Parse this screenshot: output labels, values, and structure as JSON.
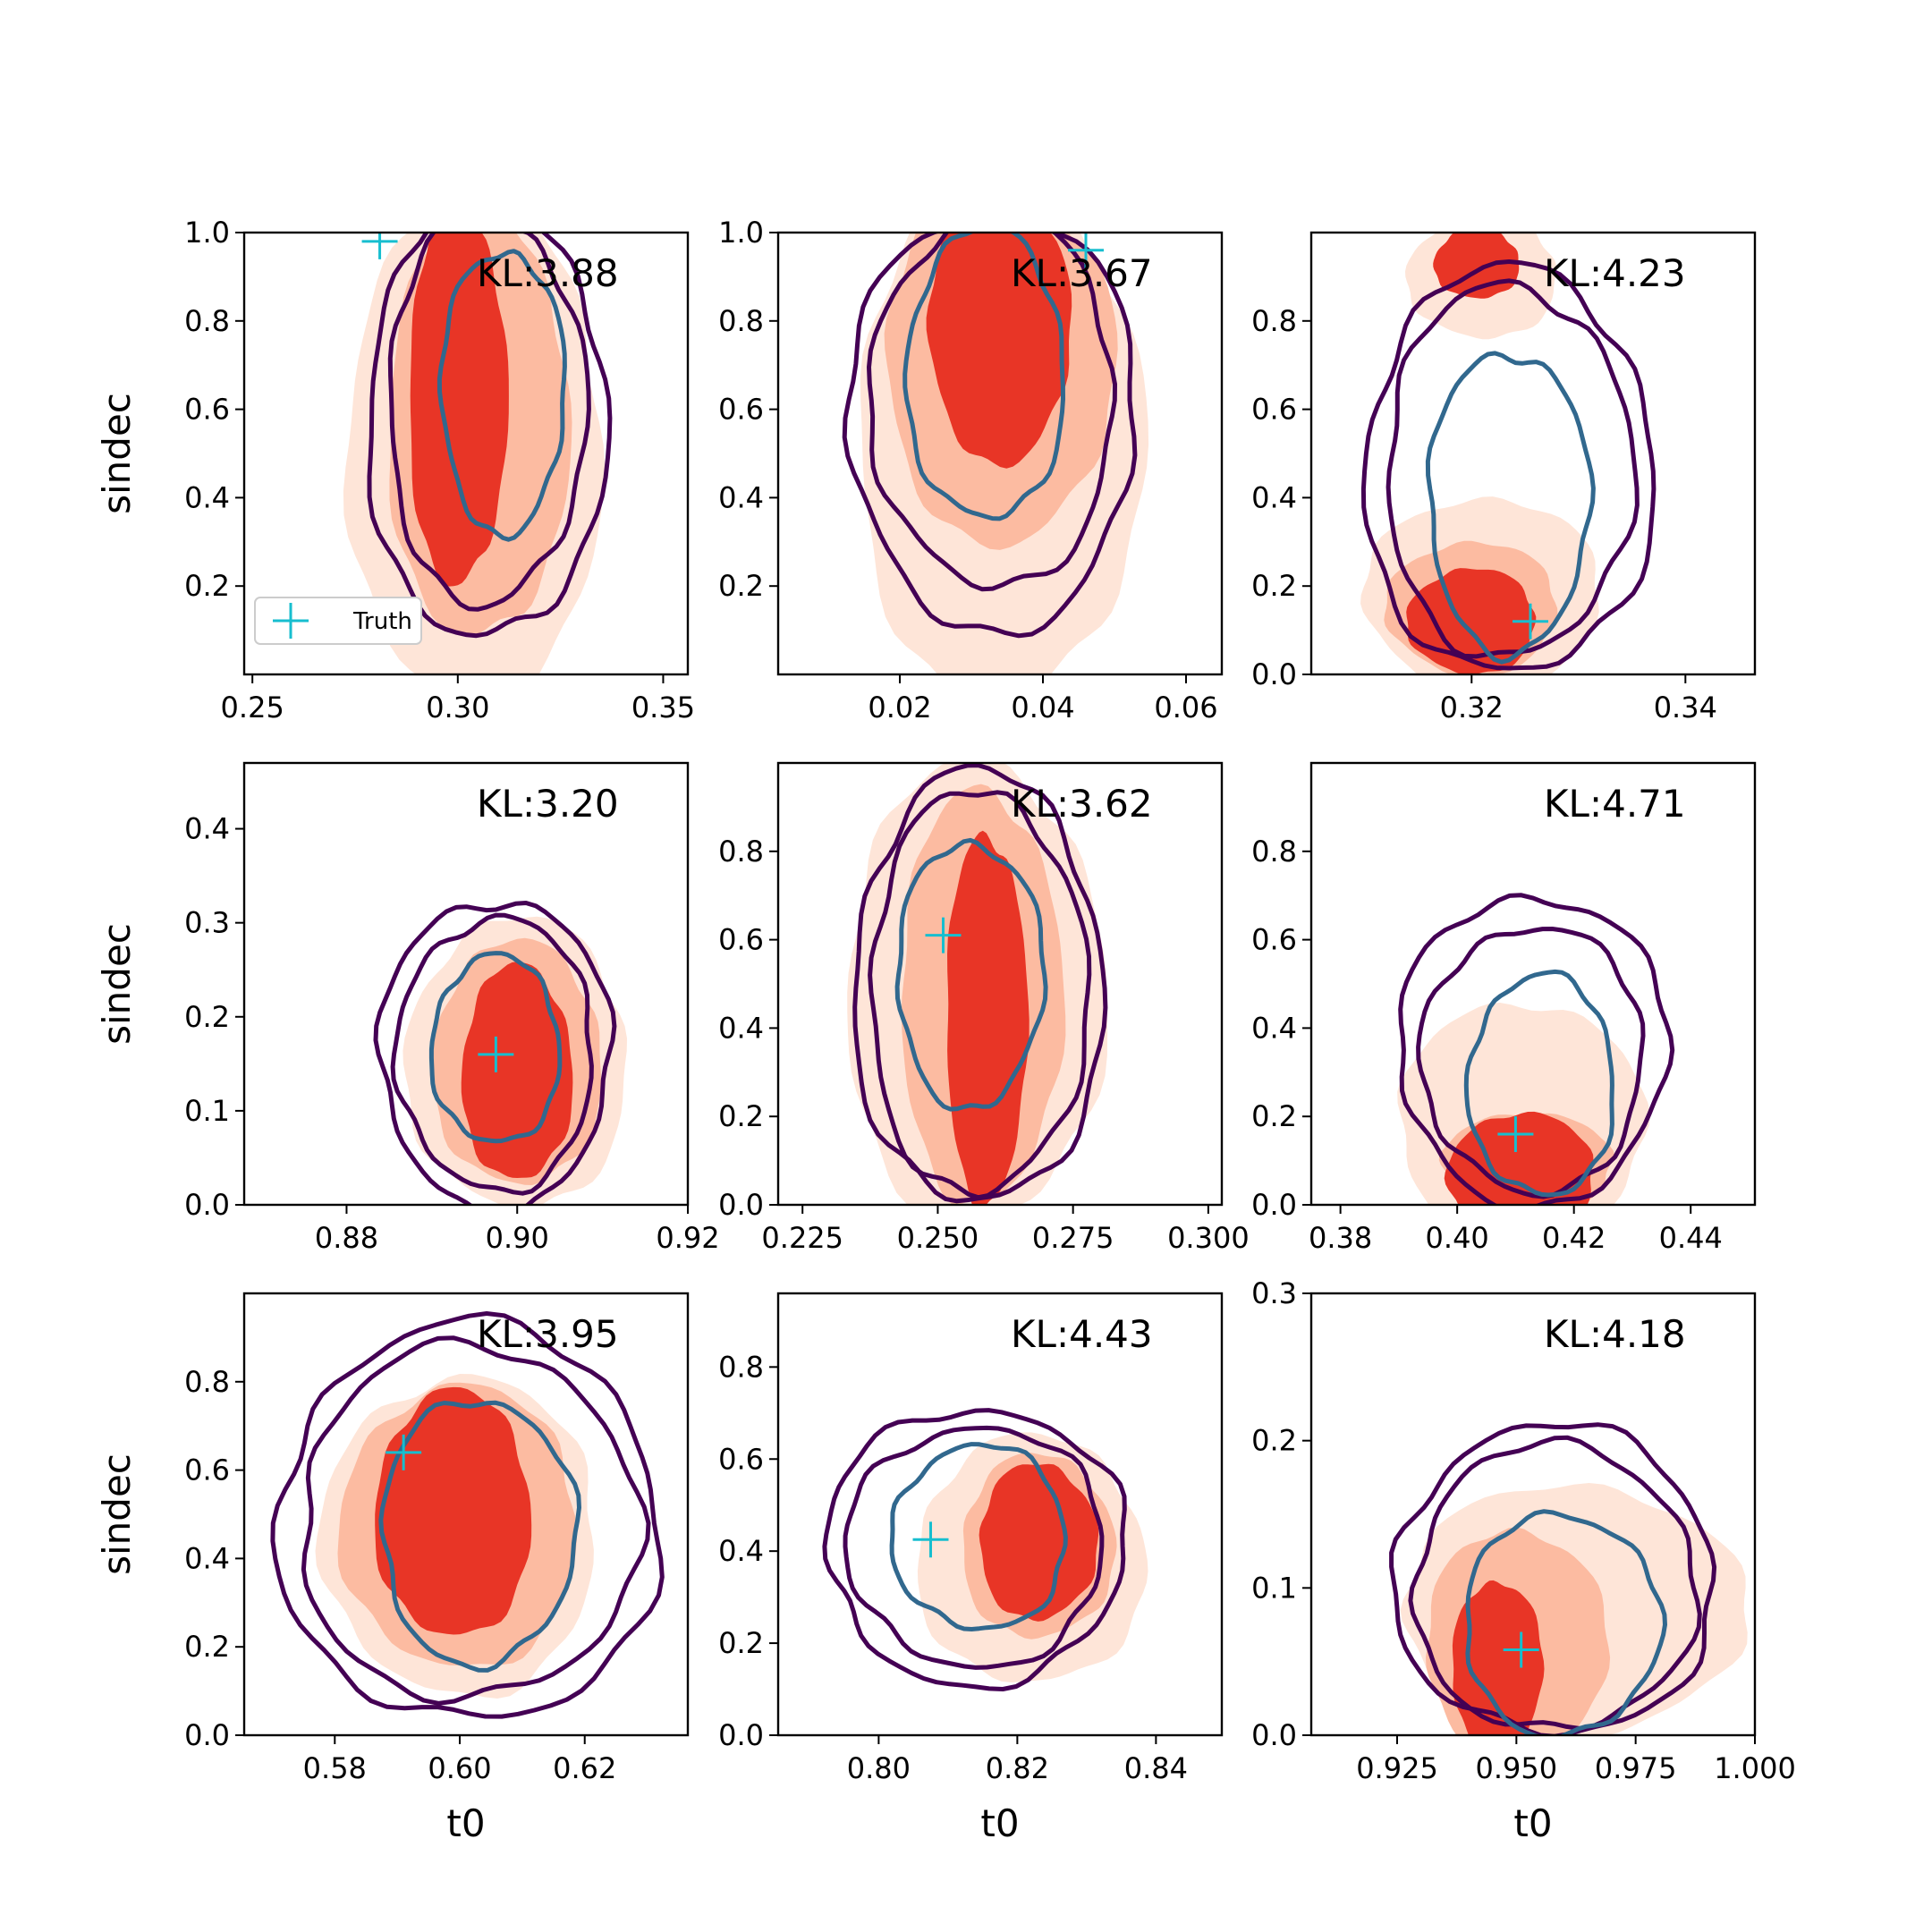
{
  "chart_data": [
    {
      "type": "contour",
      "kl": "KL:3.88",
      "xlabel": "",
      "ylabel": "sindec",
      "xlim": [
        0.248,
        0.356
      ],
      "ylim": [
        0.0,
        1.0
      ],
      "xticks": [
        "0.25",
        "0.30",
        "0.35"
      ],
      "xtick_values": [
        0.25,
        0.3,
        0.35
      ],
      "yticks": [
        "0.2",
        "0.4",
        "0.6",
        "0.8",
        "1.0"
      ],
      "ytick_values": [
        0.2,
        0.4,
        0.6,
        0.8,
        1.0
      ],
      "truth": [
        0.281,
        0.98
      ],
      "legend": {
        "label": "Truth",
        "position": "lower-left"
      },
      "filled": [
        {
          "level": 0,
          "cx": 0.304,
          "cy": 0.52,
          "rx": 0.031,
          "ry": 0.58
        },
        {
          "level": 1,
          "cx": 0.305,
          "cy": 0.57,
          "rx": 0.022,
          "ry": 0.49
        },
        {
          "level": 2,
          "cx": 0.3,
          "cy": 0.63,
          "rx": 0.012,
          "ry": 0.43
        }
      ],
      "lines": [
        {
          "color": "#440154",
          "cx": 0.307,
          "cy": 0.58,
          "rx": 0.029,
          "ry": 0.5
        },
        {
          "color": "#440154",
          "cx": 0.307,
          "cy": 0.6,
          "rx": 0.024,
          "ry": 0.44
        },
        {
          "color": "#31688e",
          "cx": 0.311,
          "cy": 0.64,
          "rx": 0.015,
          "ry": 0.32
        }
      ]
    },
    {
      "type": "contour",
      "kl": "KL:3.67",
      "xlabel": "",
      "ylabel": "",
      "xlim": [
        0.003,
        0.065
      ],
      "ylim": [
        0.0,
        1.0
      ],
      "xticks": [
        "0.02",
        "0.04",
        "0.06"
      ],
      "xtick_values": [
        0.02,
        0.04,
        0.06
      ],
      "yticks": [
        "0.2",
        "0.4",
        "0.6",
        "0.8",
        "1.0"
      ],
      "ytick_values": [
        0.2,
        0.4,
        0.6,
        0.8,
        1.0
      ],
      "truth": [
        0.046,
        0.96
      ],
      "filled": [
        {
          "level": 0,
          "cx": 0.034,
          "cy": 0.52,
          "rx": 0.02,
          "ry": 0.58
        },
        {
          "level": 1,
          "cx": 0.034,
          "cy": 0.7,
          "rx": 0.016,
          "ry": 0.4
        },
        {
          "level": 2,
          "cx": 0.034,
          "cy": 0.78,
          "rx": 0.01,
          "ry": 0.3
        }
      ],
      "lines": [
        {
          "color": "#440154",
          "cx": 0.033,
          "cy": 0.58,
          "rx": 0.02,
          "ry": 0.48
        },
        {
          "color": "#440154",
          "cx": 0.033,
          "cy": 0.62,
          "rx": 0.017,
          "ry": 0.42
        },
        {
          "color": "#31688e",
          "cx": 0.032,
          "cy": 0.68,
          "rx": 0.011,
          "ry": 0.33
        }
      ]
    },
    {
      "type": "contour",
      "kl": "KL:4.23",
      "xlabel": "",
      "ylabel": "",
      "xlim": [
        0.305,
        0.3465
      ],
      "ylim": [
        0.0,
        1.0
      ],
      "xticks": [
        "0.32",
        "0.34"
      ],
      "xtick_values": [
        0.32,
        0.34
      ],
      "yticks": [
        "0.0",
        "0.2",
        "0.4",
        "0.6",
        "0.8"
      ],
      "ytick_values": [
        0.0,
        0.2,
        0.4,
        0.6,
        0.8
      ],
      "truth": [
        0.3255,
        0.12
      ],
      "filled": [
        {
          "level": 0,
          "cx": 0.321,
          "cy": 0.18,
          "rx": 0.011,
          "ry": 0.22
        },
        {
          "level": 1,
          "cx": 0.32,
          "cy": 0.15,
          "rx": 0.008,
          "ry": 0.15
        },
        {
          "level": 2,
          "cx": 0.32,
          "cy": 0.12,
          "rx": 0.006,
          "ry": 0.12
        },
        {
          "level": 0,
          "cx": 0.321,
          "cy": 0.9,
          "rx": 0.007,
          "ry": 0.14
        },
        {
          "level": 2,
          "cx": 0.3205,
          "cy": 0.93,
          "rx": 0.004,
          "ry": 0.08
        }
      ],
      "lines": [
        {
          "color": "#440154",
          "cx": 0.3235,
          "cy": 0.46,
          "rx": 0.0135,
          "ry": 0.46
        },
        {
          "color": "#440154",
          "cx": 0.3235,
          "cy": 0.46,
          "rx": 0.0115,
          "ry": 0.42
        },
        {
          "color": "#31688e",
          "cx": 0.3235,
          "cy": 0.39,
          "rx": 0.0075,
          "ry": 0.34
        }
      ]
    },
    {
      "type": "contour",
      "kl": "KL:3.20",
      "xlabel": "",
      "ylabel": "sindec",
      "xlim": [
        0.868,
        0.92
      ],
      "ylim": [
        0.0,
        0.47
      ],
      "xticks": [
        "0.88",
        "0.90",
        "0.92"
      ],
      "xtick_values": [
        0.88,
        0.9,
        0.92
      ],
      "yticks": [
        "0.0",
        "0.1",
        "0.2",
        "0.3",
        "0.4"
      ],
      "ytick_values": [
        0.0,
        0.1,
        0.2,
        0.3,
        0.4
      ],
      "truth": [
        0.8975,
        0.16
      ],
      "filled": [
        {
          "level": 0,
          "cx": 0.9,
          "cy": 0.15,
          "rx": 0.013,
          "ry": 0.155
        },
        {
          "level": 1,
          "cx": 0.9,
          "cy": 0.15,
          "rx": 0.01,
          "ry": 0.13
        },
        {
          "level": 2,
          "cx": 0.9,
          "cy": 0.14,
          "rx": 0.0065,
          "ry": 0.115
        }
      ],
      "lines": [
        {
          "color": "#440154",
          "cx": 0.8975,
          "cy": 0.16,
          "rx": 0.0135,
          "ry": 0.165
        },
        {
          "color": "#440154",
          "cx": 0.8975,
          "cy": 0.16,
          "rx": 0.0115,
          "ry": 0.145
        },
        {
          "color": "#31688e",
          "cx": 0.8975,
          "cy": 0.165,
          "rx": 0.0075,
          "ry": 0.1
        }
      ]
    },
    {
      "type": "contour",
      "kl": "KL:3.62",
      "xlabel": "",
      "ylabel": "",
      "xlim": [
        0.2205,
        0.3025
      ],
      "ylim": [
        0.0,
        1.0
      ],
      "xticks": [
        "0.225",
        "0.250",
        "0.275",
        "0.300"
      ],
      "xtick_values": [
        0.225,
        0.25,
        0.275,
        0.3
      ],
      "yticks": [
        "0.0",
        "0.2",
        "0.4",
        "0.6",
        "0.8"
      ],
      "ytick_values": [
        0.0,
        0.2,
        0.4,
        0.6,
        0.8
      ],
      "truth": [
        0.251,
        0.61
      ],
      "filled": [
        {
          "level": 0,
          "cx": 0.257,
          "cy": 0.48,
          "rx": 0.024,
          "ry": 0.52
        },
        {
          "level": 1,
          "cx": 0.258,
          "cy": 0.47,
          "rx": 0.015,
          "ry": 0.47
        },
        {
          "level": 2,
          "cx": 0.259,
          "cy": 0.42,
          "rx": 0.0075,
          "ry": 0.42
        }
      ],
      "lines": [
        {
          "color": "#440154",
          "cx": 0.2575,
          "cy": 0.49,
          "rx": 0.023,
          "ry": 0.49
        },
        {
          "color": "#440154",
          "cx": 0.2575,
          "cy": 0.48,
          "rx": 0.02,
          "ry": 0.455
        },
        {
          "color": "#31688e",
          "cx": 0.256,
          "cy": 0.52,
          "rx": 0.0135,
          "ry": 0.3
        }
      ]
    },
    {
      "type": "contour",
      "kl": "KL:4.71",
      "xlabel": "",
      "ylabel": "",
      "xlim": [
        0.375,
        0.451
      ],
      "ylim": [
        0.0,
        1.0
      ],
      "xticks": [
        "0.38",
        "0.40",
        "0.42",
        "0.44"
      ],
      "xtick_values": [
        0.38,
        0.4,
        0.42,
        0.44
      ],
      "yticks": [
        "0.0",
        "0.2",
        "0.4",
        "0.6",
        "0.8"
      ],
      "ytick_values": [
        0.0,
        0.2,
        0.4,
        0.6,
        0.8
      ],
      "truth": [
        0.41,
        0.16
      ],
      "filled": [
        {
          "level": 0,
          "cx": 0.411,
          "cy": 0.18,
          "rx": 0.021,
          "ry": 0.28
        },
        {
          "level": 1,
          "cx": 0.412,
          "cy": 0.09,
          "rx": 0.0145,
          "ry": 0.12
        },
        {
          "level": 2,
          "cx": 0.411,
          "cy": 0.06,
          "rx": 0.0125,
          "ry": 0.15
        }
      ],
      "lines": [
        {
          "color": "#440154",
          "cx": 0.413,
          "cy": 0.35,
          "rx": 0.023,
          "ry": 0.35
        },
        {
          "color": "#440154",
          "cx": 0.413,
          "cy": 0.33,
          "rx": 0.019,
          "ry": 0.3
        },
        {
          "color": "#31688e",
          "cx": 0.4145,
          "cy": 0.27,
          "rx": 0.0125,
          "ry": 0.25
        }
      ]
    },
    {
      "type": "contour",
      "kl": "KL:3.95",
      "xlabel": "t0",
      "ylabel": "sindec",
      "xlim": [
        0.5655,
        0.6365
      ],
      "ylim": [
        0.0,
        1.0
      ],
      "xticks": [
        "0.58",
        "0.60",
        "0.62"
      ],
      "xtick_values": [
        0.58,
        0.6,
        0.62
      ],
      "yticks": [
        "0.0",
        "0.2",
        "0.4",
        "0.6",
        "0.8"
      ],
      "ytick_values": [
        0.0,
        0.2,
        0.4,
        0.6,
        0.8
      ],
      "truth": [
        0.591,
        0.64
      ],
      "filled": [
        {
          "level": 0,
          "cx": 0.6,
          "cy": 0.45,
          "rx": 0.022,
          "ry": 0.36
        },
        {
          "level": 1,
          "cx": 0.6,
          "cy": 0.47,
          "rx": 0.019,
          "ry": 0.32
        },
        {
          "level": 2,
          "cx": 0.599,
          "cy": 0.5,
          "rx": 0.0125,
          "ry": 0.28
        }
      ],
      "lines": [
        {
          "color": "#440154",
          "cx": 0.6015,
          "cy": 0.48,
          "rx": 0.0305,
          "ry": 0.45
        },
        {
          "color": "#440154",
          "cx": 0.6015,
          "cy": 0.48,
          "rx": 0.027,
          "ry": 0.4
        },
        {
          "color": "#31688e",
          "cx": 0.603,
          "cy": 0.46,
          "rx": 0.0155,
          "ry": 0.3
        }
      ]
    },
    {
      "type": "contour",
      "kl": "KL:4.43",
      "xlabel": "t0",
      "ylabel": "",
      "xlim": [
        0.7855,
        0.8495
      ],
      "ylim": [
        0.0,
        0.96
      ],
      "xticks": [
        "0.80",
        "0.82",
        "0.84"
      ],
      "xtick_values": [
        0.8,
        0.82,
        0.84
      ],
      "yticks": [
        "0.0",
        "0.2",
        "0.4",
        "0.6",
        "0.8"
      ],
      "ytick_values": [
        0.0,
        0.2,
        0.4,
        0.6,
        0.8
      ],
      "truth": [
        0.8075,
        0.425
      ],
      "filled": [
        {
          "level": 0,
          "cx": 0.822,
          "cy": 0.38,
          "rx": 0.0165,
          "ry": 0.27
        },
        {
          "level": 1,
          "cx": 0.823,
          "cy": 0.41,
          "rx": 0.011,
          "ry": 0.2
        },
        {
          "level": 2,
          "cx": 0.823,
          "cy": 0.42,
          "rx": 0.0085,
          "ry": 0.17
        }
      ],
      "lines": [
        {
          "color": "#440154",
          "cx": 0.814,
          "cy": 0.41,
          "rx": 0.0215,
          "ry": 0.3
        },
        {
          "color": "#440154",
          "cx": 0.814,
          "cy": 0.41,
          "rx": 0.0185,
          "ry": 0.26
        },
        {
          "color": "#31688e",
          "cx": 0.8145,
          "cy": 0.43,
          "rx": 0.0125,
          "ry": 0.2
        }
      ]
    },
    {
      "type": "contour",
      "kl": "KL:4.18",
      "xlabel": "t0",
      "ylabel": "",
      "xlim": [
        0.907,
        1.0
      ],
      "ylim": [
        0.0,
        0.3
      ],
      "xticks": [
        "0.925",
        "0.950",
        "0.975",
        "1.000"
      ],
      "xtick_values": [
        0.925,
        0.95,
        0.975,
        1.0
      ],
      "yticks": [
        "0.0",
        "0.1",
        "0.2",
        "0.3"
      ],
      "ytick_values": [
        0.0,
        0.1,
        0.2,
        0.3
      ],
      "truth": [
        0.951,
        0.058
      ],
      "filled": [
        {
          "level": 0,
          "cx": 0.962,
          "cy": 0.085,
          "rx": 0.036,
          "ry": 0.085
        },
        {
          "level": 1,
          "cx": 0.95,
          "cy": 0.06,
          "rx": 0.019,
          "ry": 0.08
        },
        {
          "level": 2,
          "cx": 0.946,
          "cy": 0.045,
          "rx": 0.0095,
          "ry": 0.06
        }
      ],
      "lines": [
        {
          "color": "#440154",
          "cx": 0.958,
          "cy": 0.105,
          "rx": 0.0335,
          "ry": 0.105
        },
        {
          "color": "#440154",
          "cx": 0.958,
          "cy": 0.1,
          "rx": 0.0295,
          "ry": 0.097
        },
        {
          "color": "#31688e",
          "cx": 0.9595,
          "cy": 0.075,
          "rx": 0.0205,
          "ry": 0.075
        }
      ]
    }
  ],
  "colors": {
    "filled_levels": [
      "#fee5d8",
      "#fcbba1",
      "#e83526"
    ],
    "line_outer": "#440154",
    "line_inner": "#31688e",
    "truth_marker": "#17becf",
    "axes": "#000000"
  },
  "icons": {
    "truth_marker": "plus-marker"
  }
}
